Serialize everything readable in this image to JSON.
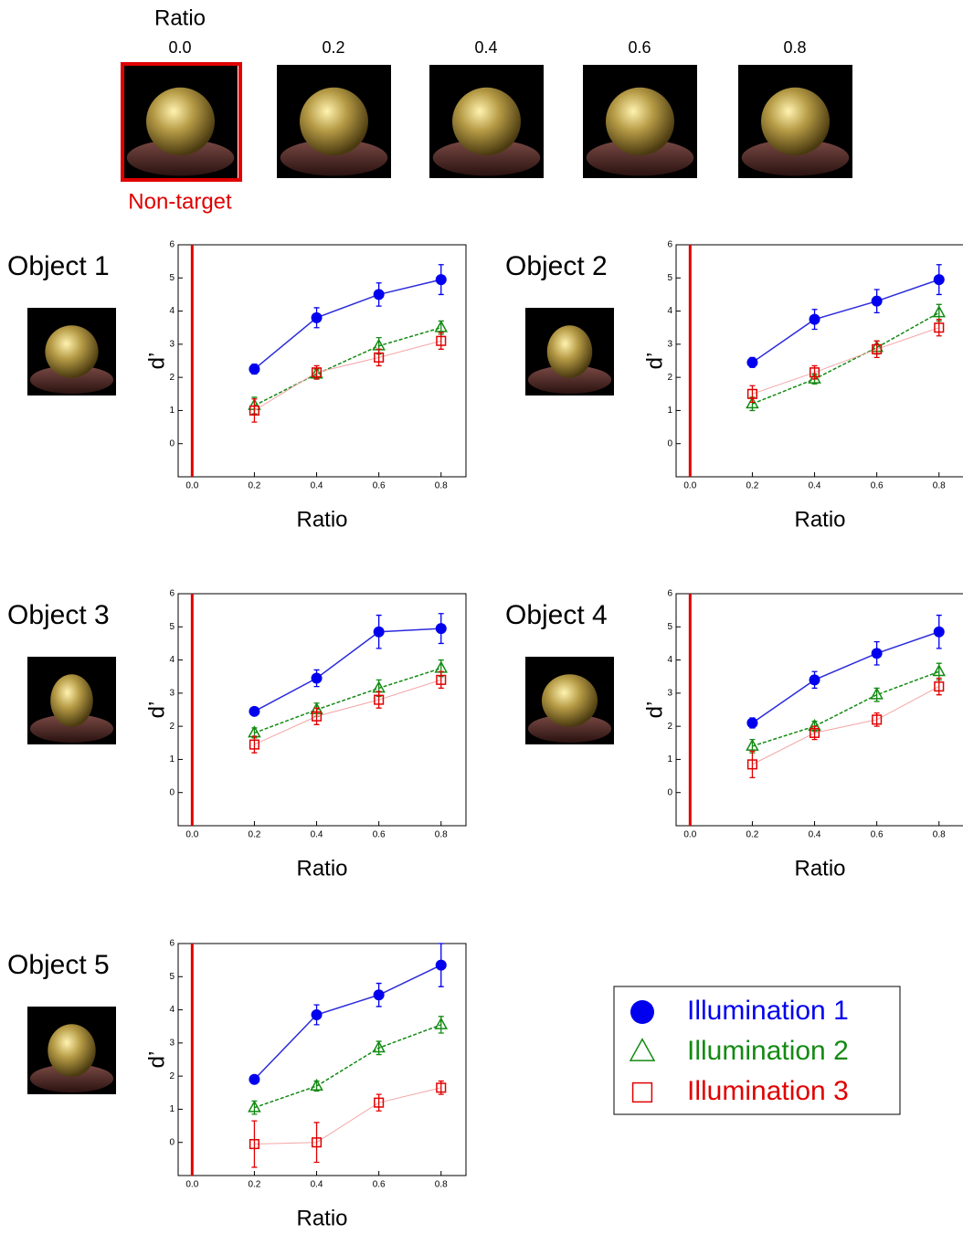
{
  "header": {
    "title": "Ratio",
    "ratios": [
      "0.0",
      "0.2",
      "0.4",
      "0.6",
      "0.8"
    ],
    "highlight_label": "Non-target"
  },
  "chart_data": [
    {
      "type": "line",
      "title": "Object 1",
      "xlabel": "Ratio",
      "ylabel": "d’",
      "x": [
        0.2,
        0.4,
        0.6,
        0.8
      ],
      "xlim": [
        -0.045,
        0.88
      ],
      "xticks": [
        {
          "value": 0,
          "label": "0.0"
        },
        0.2,
        0.4,
        0.6,
        0.8
      ],
      "ylim": [
        -1,
        6
      ],
      "yticks": [
        0,
        1,
        2,
        3,
        4,
        5,
        6
      ],
      "vline": 0,
      "vline_color": "#e00000",
      "series": [
        {
          "name": "Illumination 1",
          "color": "#0000ee",
          "line_color": "#2b2bdd",
          "marker": "circle",
          "line_style": "solid",
          "values": [
            2.25,
            3.8,
            4.5,
            4.95
          ],
          "errors": [
            0.15,
            0.3,
            0.35,
            0.45
          ]
        },
        {
          "name": "Illumination 2",
          "color": "#138a13",
          "line_color": "#138a13",
          "marker": "triangle",
          "line_style": "dashed",
          "values": [
            1.15,
            2.1,
            2.95,
            3.5
          ],
          "errors": [
            0.25,
            0.15,
            0.25,
            0.2
          ]
        },
        {
          "name": "Illumination 3",
          "color": "#e00000",
          "line_color": "#f5a5a5",
          "marker": "square",
          "line_style": "solid",
          "values": [
            1.0,
            2.15,
            2.6,
            3.1
          ],
          "errors": [
            0.35,
            0.2,
            0.25,
            0.25
          ]
        }
      ]
    },
    {
      "type": "line",
      "title": "Object 2",
      "xlabel": "Ratio",
      "ylabel": "d’",
      "x": [
        0.2,
        0.4,
        0.6,
        0.8
      ],
      "xlim": [
        -0.045,
        0.88
      ],
      "xticks": [
        {
          "value": 0,
          "label": "0.0"
        },
        0.2,
        0.4,
        0.6,
        0.8
      ],
      "ylim": [
        -1,
        6
      ],
      "yticks": [
        0,
        1,
        2,
        3,
        4,
        5,
        6
      ],
      "vline": 0,
      "vline_color": "#e00000",
      "series": [
        {
          "color": "#0000ee",
          "line_color": "#2b2bdd",
          "marker": "circle",
          "line_style": "solid",
          "values": [
            2.45,
            3.75,
            4.3,
            4.95
          ],
          "errors": [
            0.15,
            0.3,
            0.35,
            0.45
          ]
        },
        {
          "color": "#138a13",
          "line_color": "#138a13",
          "marker": "triangle",
          "line_style": "dashed",
          "values": [
            1.2,
            1.95,
            2.9,
            3.95
          ],
          "errors": [
            0.2,
            0.15,
            0.2,
            0.25
          ]
        },
        {
          "color": "#e00000",
          "line_color": "#f5a5a5",
          "marker": "square",
          "line_style": "solid",
          "values": [
            1.5,
            2.15,
            2.85,
            3.5
          ],
          "errors": [
            0.25,
            0.2,
            0.25,
            0.25
          ]
        }
      ]
    },
    {
      "type": "line",
      "title": "Object 3",
      "xlabel": "Ratio",
      "ylabel": "d’",
      "x": [
        0.2,
        0.4,
        0.6,
        0.8
      ],
      "xlim": [
        -0.045,
        0.88
      ],
      "xticks": [
        {
          "value": 0,
          "label": "0.0"
        },
        0.2,
        0.4,
        0.6,
        0.8
      ],
      "ylim": [
        -1,
        6
      ],
      "yticks": [
        0,
        1,
        2,
        3,
        4,
        5,
        6
      ],
      "vline": 0,
      "vline_color": "#e00000",
      "series": [
        {
          "color": "#0000ee",
          "line_color": "#2b2bdd",
          "marker": "circle",
          "line_style": "solid",
          "values": [
            2.45,
            3.45,
            4.85,
            4.95
          ],
          "errors": [
            0.1,
            0.25,
            0.5,
            0.45
          ]
        },
        {
          "color": "#138a13",
          "line_color": "#138a13",
          "marker": "triangle",
          "line_style": "dashed",
          "values": [
            1.8,
            2.5,
            3.15,
            3.75
          ],
          "errors": [
            0.15,
            0.2,
            0.25,
            0.25
          ]
        },
        {
          "color": "#e00000",
          "line_color": "#f5a5a5",
          "marker": "square",
          "line_style": "solid",
          "values": [
            1.45,
            2.3,
            2.8,
            3.4
          ],
          "errors": [
            0.25,
            0.25,
            0.25,
            0.25
          ]
        }
      ]
    },
    {
      "type": "line",
      "title": "Object 4",
      "xlabel": "Ratio",
      "ylabel": "d’",
      "x": [
        0.2,
        0.4,
        0.6,
        0.8
      ],
      "xlim": [
        -0.045,
        0.88
      ],
      "xticks": [
        {
          "value": 0,
          "label": "0.0"
        },
        0.2,
        0.4,
        0.6,
        0.8
      ],
      "ylim": [
        -1,
        6
      ],
      "yticks": [
        0,
        1,
        2,
        3,
        4,
        5,
        6
      ],
      "vline": 0,
      "vline_color": "#e00000",
      "series": [
        {
          "color": "#0000ee",
          "line_color": "#2b2bdd",
          "marker": "circle",
          "line_style": "solid",
          "values": [
            2.1,
            3.4,
            4.2,
            4.85
          ],
          "errors": [
            0.15,
            0.25,
            0.35,
            0.5
          ]
        },
        {
          "color": "#138a13",
          "line_color": "#138a13",
          "marker": "triangle",
          "line_style": "dashed",
          "values": [
            1.4,
            2.0,
            2.95,
            3.65
          ],
          "errors": [
            0.2,
            0.15,
            0.2,
            0.25
          ]
        },
        {
          "color": "#e00000",
          "line_color": "#f5a5a5",
          "marker": "square",
          "line_style": "solid",
          "values": [
            0.85,
            1.8,
            2.2,
            3.2
          ],
          "errors": [
            0.4,
            0.2,
            0.2,
            0.25
          ]
        }
      ]
    },
    {
      "type": "line",
      "title": "Object 5",
      "xlabel": "Ratio",
      "ylabel": "d’",
      "x": [
        0.2,
        0.4,
        0.6,
        0.8
      ],
      "xlim": [
        -0.045,
        0.88
      ],
      "xticks": [
        {
          "value": 0,
          "label": "0.0"
        },
        0.2,
        0.4,
        0.6,
        0.8
      ],
      "ylim": [
        -1,
        6
      ],
      "yticks": [
        0,
        1,
        2,
        3,
        4,
        5,
        6
      ],
      "vline": 0,
      "vline_color": "#e00000",
      "series": [
        {
          "color": "#0000ee",
          "line_color": "#2b2bdd",
          "marker": "circle",
          "line_style": "solid",
          "values": [
            1.9,
            3.85,
            4.45,
            5.35
          ],
          "errors": [
            0.1,
            0.3,
            0.35,
            0.65
          ]
        },
        {
          "color": "#138a13",
          "line_color": "#138a13",
          "marker": "triangle",
          "line_style": "dashed",
          "values": [
            1.05,
            1.7,
            2.85,
            3.55
          ],
          "errors": [
            0.2,
            0.15,
            0.2,
            0.25
          ]
        },
        {
          "color": "#e00000",
          "line_color": "#f5a5a5",
          "marker": "square",
          "line_style": "solid",
          "values": [
            -0.05,
            0.0,
            1.2,
            1.65
          ],
          "errors": [
            0.7,
            0.6,
            0.25,
            0.2
          ]
        }
      ]
    }
  ]
}
